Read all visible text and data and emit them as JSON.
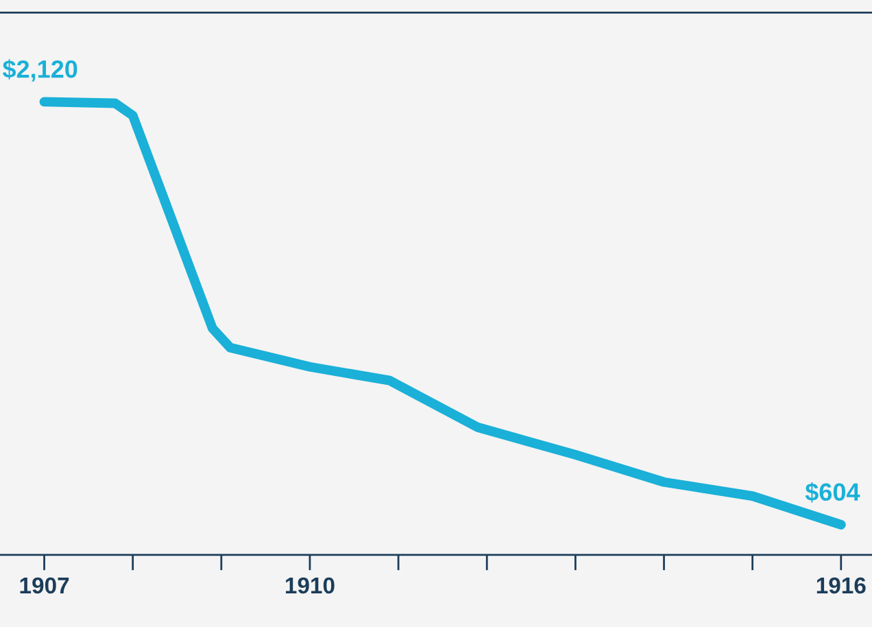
{
  "chart_data": {
    "type": "line",
    "x": [
      1907,
      1907.8,
      1908,
      1908.9,
      1909.1,
      1910,
      1910.9,
      1911.9,
      1913,
      1914,
      1915,
      1916
    ],
    "series": [
      {
        "color": "#1ab0d8",
        "values": [
          2120,
          2115,
          2071,
          1308,
          1239,
          1170,
          1121,
          953,
          855,
          757,
          707,
          604
        ],
        "value_labels": [
          "$2,120",
          null,
          null,
          null,
          null,
          null,
          null,
          null,
          null,
          null,
          null,
          "$604"
        ]
      }
    ],
    "xlim": [
      1906.5,
      1916.35
    ],
    "xticks": [
      1907,
      {
        "value": 1908,
        "label": null
      },
      {
        "value": 1909,
        "label": null
      },
      1910,
      {
        "value": 1911,
        "label": null
      },
      {
        "value": 1912,
        "label": null
      },
      {
        "value": 1913,
        "label": null
      },
      {
        "value": 1914,
        "label": null
      },
      {
        "value": 1915,
        "label": null
      },
      1916
    ],
    "ylim": [
      496,
      2440
    ],
    "tick_labels": "x",
    "grid": false,
    "marker": "none",
    "line_style": "solid",
    "legend": false
  }
}
